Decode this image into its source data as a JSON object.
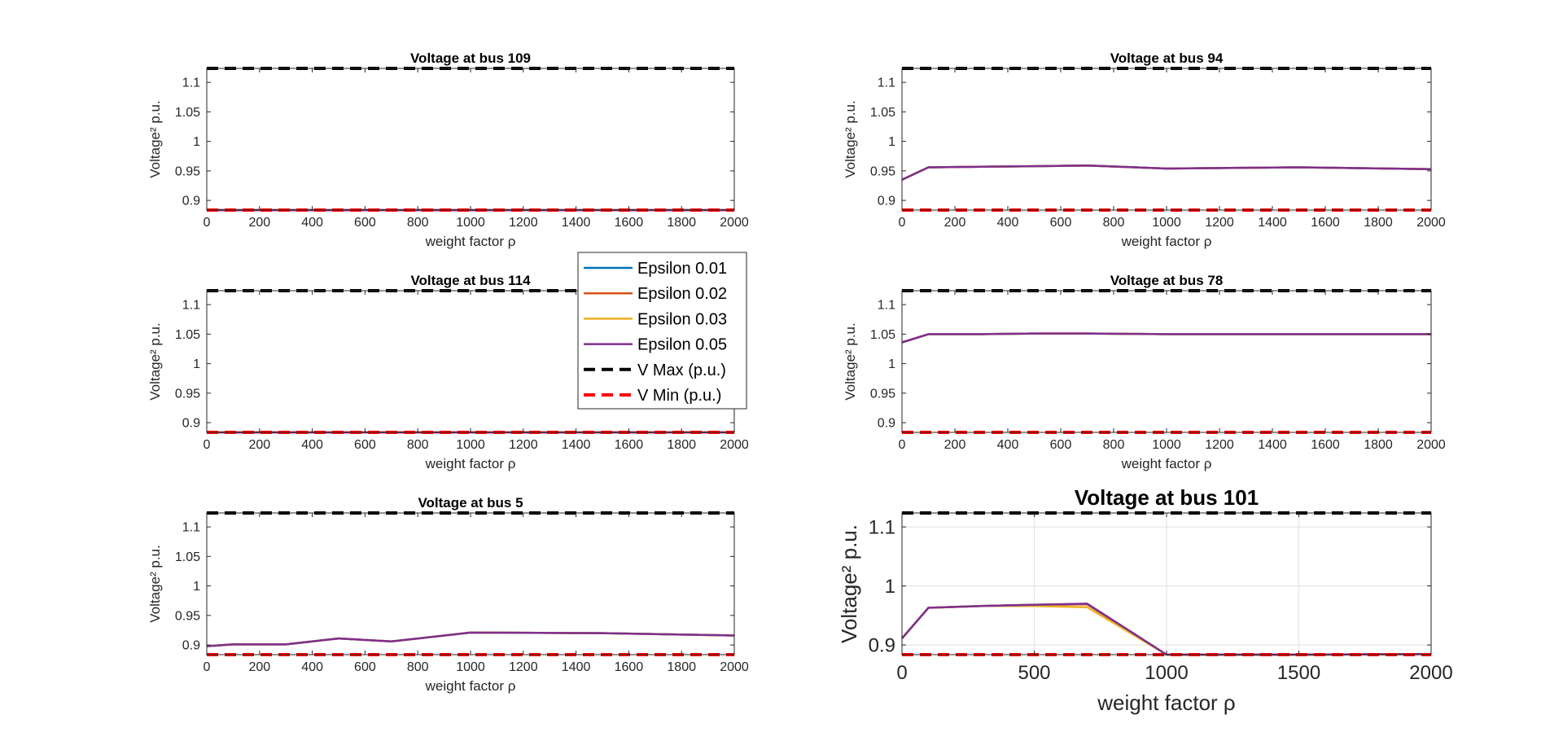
{
  "figure": {
    "background": "#ffffff"
  },
  "legend": {
    "placement": "center, between left and right columns",
    "entries": [
      {
        "label": "Epsilon 0.01",
        "color": "#0072bd",
        "style": "solid"
      },
      {
        "label": "Epsilon 0.02",
        "color": "#d95319",
        "style": "solid"
      },
      {
        "label": "Epsilon 0.03",
        "color": "#edb120",
        "style": "solid"
      },
      {
        "label": "Epsilon 0.05",
        "color": "#7e2f8e",
        "style": "solid"
      },
      {
        "label": "V Max (p.u.)",
        "color": "#000000",
        "style": "dashed"
      },
      {
        "label": "V Min (p.u.)",
        "color": "#ff0000",
        "style": "dashed"
      }
    ]
  },
  "chart_data": [
    {
      "type": "line",
      "title": "Voltage at bus 109",
      "xlabel": "weight factor ρ",
      "ylabel": "Voltage² p.u.",
      "xlim": [
        0,
        2000
      ],
      "ylim": [
        0.8836,
        1.1236
      ],
      "xticks": [
        0,
        200,
        400,
        600,
        800,
        1000,
        1200,
        1400,
        1600,
        1800,
        2000
      ],
      "yticks": [
        0.9,
        0.95,
        1,
        1.05,
        1.1
      ],
      "ytick_labels": [
        "0.9",
        "0.95",
        "1",
        "1.05",
        "1.1"
      ],
      "grid": false,
      "vmax": 1.1236,
      "vmin": 0.8836,
      "x": [
        0,
        100,
        300,
        500,
        700,
        1000,
        1500,
        2000
      ],
      "series": [
        {
          "name": "Epsilon 0.01",
          "values": [
            0.8836,
            0.8836,
            0.8836,
            0.8836,
            0.8836,
            0.8836,
            0.8836,
            0.8836
          ]
        },
        {
          "name": "Epsilon 0.02",
          "values": [
            0.8836,
            0.8836,
            0.8836,
            0.8836,
            0.8836,
            0.8836,
            0.8836,
            0.8836
          ]
        },
        {
          "name": "Epsilon 0.03",
          "values": [
            0.8836,
            0.8836,
            0.8836,
            0.8836,
            0.8836,
            0.8836,
            0.8836,
            0.8836
          ]
        },
        {
          "name": "Epsilon 0.05",
          "values": [
            0.8836,
            0.8836,
            0.8836,
            0.8836,
            0.8836,
            0.8836,
            0.8836,
            0.8836
          ]
        }
      ]
    },
    {
      "type": "line",
      "title": "Voltage at bus 94",
      "xlabel": "weight factor ρ",
      "ylabel": "Voltage² p.u.",
      "xlim": [
        0,
        2000
      ],
      "ylim": [
        0.8836,
        1.1236
      ],
      "xticks": [
        0,
        200,
        400,
        600,
        800,
        1000,
        1200,
        1400,
        1600,
        1800,
        2000
      ],
      "yticks": [
        0.9,
        0.95,
        1,
        1.05,
        1.1
      ],
      "ytick_labels": [
        "0.9",
        "0.95",
        "1",
        "1.05",
        "1.1"
      ],
      "grid": false,
      "vmax": 1.1236,
      "vmin": 0.8836,
      "x": [
        0,
        100,
        300,
        500,
        700,
        1000,
        1500,
        2000
      ],
      "series": [
        {
          "name": "Epsilon 0.01",
          "values": [
            0.935,
            0.956,
            0.957,
            0.958,
            0.959,
            0.954,
            0.956,
            0.953
          ]
        },
        {
          "name": "Epsilon 0.02",
          "values": [
            0.935,
            0.956,
            0.957,
            0.958,
            0.959,
            0.954,
            0.956,
            0.953
          ]
        },
        {
          "name": "Epsilon 0.03",
          "values": [
            0.935,
            0.956,
            0.957,
            0.958,
            0.959,
            0.954,
            0.956,
            0.953
          ]
        },
        {
          "name": "Epsilon 0.05",
          "values": [
            0.935,
            0.956,
            0.957,
            0.958,
            0.959,
            0.954,
            0.956,
            0.953
          ]
        }
      ]
    },
    {
      "type": "line",
      "title": "Voltage at bus 114",
      "xlabel": "weight factor ρ",
      "ylabel": "Voltage² p.u.",
      "xlim": [
        0,
        2000
      ],
      "ylim": [
        0.8836,
        1.1236
      ],
      "xticks": [
        0,
        200,
        400,
        600,
        800,
        1000,
        1200,
        1400,
        1600,
        1800,
        2000
      ],
      "yticks": [
        0.9,
        0.95,
        1,
        1.05,
        1.1
      ],
      "ytick_labels": [
        "0.9",
        "0.95",
        "1",
        "1.05",
        "1.1"
      ],
      "grid": false,
      "vmax": 1.1236,
      "vmin": 0.8836,
      "x": [
        0,
        100,
        300,
        500,
        700,
        1000,
        1500,
        2000
      ],
      "series": [
        {
          "name": "Epsilon 0.01",
          "values": [
            0.8836,
            0.8836,
            0.8836,
            0.8836,
            0.8836,
            0.8836,
            0.8836,
            0.8836
          ]
        },
        {
          "name": "Epsilon 0.02",
          "values": [
            0.8836,
            0.8836,
            0.8836,
            0.8836,
            0.8836,
            0.8836,
            0.8836,
            0.8836
          ]
        },
        {
          "name": "Epsilon 0.03",
          "values": [
            0.8836,
            0.8836,
            0.8836,
            0.8836,
            0.8836,
            0.8836,
            0.8836,
            0.8836
          ]
        },
        {
          "name": "Epsilon 0.05",
          "values": [
            0.8836,
            0.8836,
            0.8836,
            0.8836,
            0.8836,
            0.8836,
            0.8836,
            0.8836
          ]
        }
      ]
    },
    {
      "type": "line",
      "title": "Voltage at bus 78",
      "xlabel": "weight factor ρ",
      "ylabel": "Voltage² p.u.",
      "xlim": [
        0,
        2000
      ],
      "ylim": [
        0.8836,
        1.1236
      ],
      "xticks": [
        0,
        200,
        400,
        600,
        800,
        1000,
        1200,
        1400,
        1600,
        1800,
        2000
      ],
      "yticks": [
        0.9,
        0.95,
        1,
        1.05,
        1.1
      ],
      "ytick_labels": [
        "0.9",
        "0.95",
        "1",
        "1.05",
        "1.1"
      ],
      "grid": false,
      "vmax": 1.1236,
      "vmin": 0.8836,
      "x": [
        0,
        100,
        300,
        500,
        700,
        1000,
        1500,
        2000
      ],
      "series": [
        {
          "name": "Epsilon 0.01",
          "values": [
            1.036,
            1.05,
            1.05,
            1.051,
            1.051,
            1.05,
            1.05,
            1.05
          ]
        },
        {
          "name": "Epsilon 0.02",
          "values": [
            1.036,
            1.05,
            1.05,
            1.051,
            1.051,
            1.05,
            1.05,
            1.05
          ]
        },
        {
          "name": "Epsilon 0.03",
          "values": [
            1.036,
            1.05,
            1.05,
            1.051,
            1.051,
            1.05,
            1.05,
            1.05
          ]
        },
        {
          "name": "Epsilon 0.05",
          "values": [
            1.036,
            1.05,
            1.05,
            1.051,
            1.051,
            1.05,
            1.05,
            1.05
          ]
        }
      ]
    },
    {
      "type": "line",
      "title": "Voltage at bus 5",
      "xlabel": "weight factor ρ",
      "ylabel": "Voltage² p.u.",
      "xlim": [
        0,
        2000
      ],
      "ylim": [
        0.8836,
        1.1236
      ],
      "xticks": [
        0,
        200,
        400,
        600,
        800,
        1000,
        1200,
        1400,
        1600,
        1800,
        2000
      ],
      "yticks": [
        0.9,
        0.95,
        1,
        1.05,
        1.1
      ],
      "ytick_labels": [
        "0.9",
        "0.95",
        "1",
        "1.05",
        "1.1"
      ],
      "grid": false,
      "vmax": 1.1236,
      "vmin": 0.8836,
      "x": [
        0,
        100,
        300,
        500,
        700,
        1000,
        1500,
        2000
      ],
      "series": [
        {
          "name": "Epsilon 0.01",
          "values": [
            0.898,
            0.901,
            0.901,
            0.911,
            0.906,
            0.921,
            0.92,
            0.916
          ]
        },
        {
          "name": "Epsilon 0.02",
          "values": [
            0.898,
            0.901,
            0.901,
            0.911,
            0.906,
            0.921,
            0.92,
            0.916
          ]
        },
        {
          "name": "Epsilon 0.03",
          "values": [
            0.898,
            0.901,
            0.901,
            0.911,
            0.906,
            0.921,
            0.92,
            0.916
          ]
        },
        {
          "name": "Epsilon 0.05",
          "values": [
            0.898,
            0.901,
            0.901,
            0.911,
            0.906,
            0.921,
            0.92,
            0.916
          ]
        }
      ]
    },
    {
      "type": "line",
      "title": "Voltage at bus 101",
      "xlabel": "weight factor ρ",
      "ylabel": "Voltage² p.u.",
      "xlim": [
        0,
        2000
      ],
      "ylim": [
        0.8836,
        1.1236
      ],
      "xticks": [
        0,
        500,
        1000,
        1500,
        2000
      ],
      "yticks": [
        0.9,
        1,
        1.1
      ],
      "ytick_labels": [
        "0.9",
        "1",
        "1.1"
      ],
      "grid": true,
      "vmax": 1.1236,
      "vmin": 0.8836,
      "x": [
        0,
        100,
        300,
        500,
        700,
        1000,
        1500,
        2000
      ],
      "series": [
        {
          "name": "Epsilon 0.01",
          "values": [
            0.911,
            0.963,
            0.966,
            0.968,
            0.969,
            0.8836,
            0.8836,
            0.8846
          ]
        },
        {
          "name": "Epsilon 0.02",
          "values": [
            0.911,
            0.963,
            0.966,
            0.968,
            0.969,
            0.8836,
            0.8836,
            0.8846
          ]
        },
        {
          "name": "Epsilon 0.03",
          "values": [
            0.911,
            0.963,
            0.966,
            0.966,
            0.964,
            0.8836,
            0.8836,
            0.8846
          ]
        },
        {
          "name": "Epsilon 0.05",
          "values": [
            0.911,
            0.963,
            0.966,
            0.968,
            0.97,
            0.8836,
            0.8836,
            0.8846
          ]
        }
      ]
    }
  ]
}
